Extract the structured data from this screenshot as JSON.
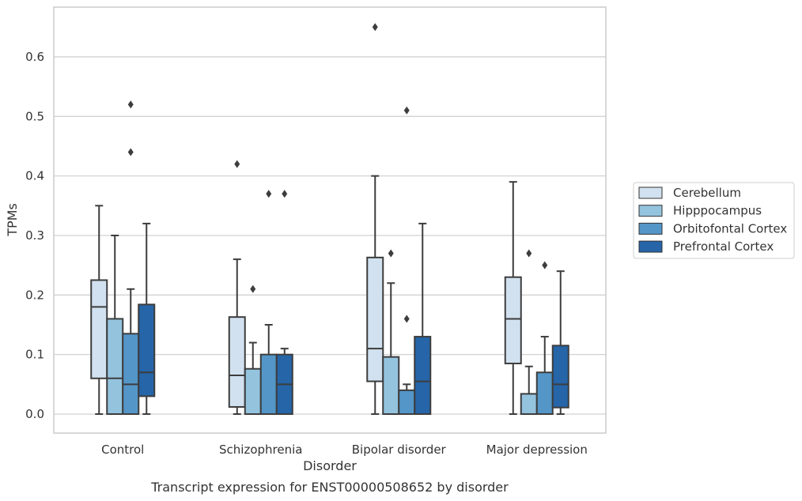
{
  "chart_data": {
    "type": "box",
    "title": "Transcript expression for ENST00000508652 by disorder",
    "xlabel": "Disorder",
    "ylabel": "TPMs",
    "ylim": [
      -0.03,
      0.685
    ],
    "yticks": [
      "0.0",
      "0.1",
      "0.2",
      "0.3",
      "0.4",
      "0.5",
      "0.6"
    ],
    "grid": true,
    "legend_position": "right",
    "categories": [
      "Control",
      "Schizophrenia",
      "Bipolar disorder",
      "Major depression"
    ],
    "series": [
      {
        "name": "Cerebellum",
        "color": "#d1e1ef",
        "boxes": [
          {
            "q1": 0.06,
            "median": 0.18,
            "q3": 0.225,
            "whislo": 0.0,
            "whishi": 0.35,
            "fliers": []
          },
          {
            "q1": 0.012,
            "median": 0.065,
            "q3": 0.163,
            "whislo": 0.0,
            "whishi": 0.26,
            "fliers": [
              0.42
            ]
          },
          {
            "q1": 0.055,
            "median": 0.11,
            "q3": 0.263,
            "whislo": 0.0,
            "whishi": 0.4,
            "fliers": [
              0.65
            ]
          },
          {
            "q1": 0.085,
            "median": 0.16,
            "q3": 0.23,
            "whislo": 0.0,
            "whishi": 0.39,
            "fliers": []
          }
        ]
      },
      {
        "name": "Hipppocampus",
        "color": "#94c3de",
        "boxes": [
          {
            "q1": 0.0,
            "median": 0.06,
            "q3": 0.16,
            "whislo": 0.0,
            "whishi": 0.3,
            "fliers": []
          },
          {
            "q1": 0.0,
            "median": 0.0,
            "q3": 0.076,
            "whislo": 0.0,
            "whishi": 0.12,
            "fliers": [
              0.21
            ]
          },
          {
            "q1": 0.0,
            "median": 0.0,
            "q3": 0.096,
            "whislo": 0.0,
            "whishi": 0.22,
            "fliers": [
              0.27
            ]
          },
          {
            "q1": 0.0,
            "median": 0.0,
            "q3": 0.034,
            "whislo": 0.0,
            "whishi": 0.08,
            "fliers": [
              0.27
            ]
          }
        ]
      },
      {
        "name": "Orbitofontal Cortex",
        "color": "#5496c8",
        "boxes": [
          {
            "q1": 0.0,
            "median": 0.05,
            "q3": 0.135,
            "whislo": 0.0,
            "whishi": 0.21,
            "fliers": [
              0.44,
              0.52
            ]
          },
          {
            "q1": 0.0,
            "median": 0.0,
            "q3": 0.1,
            "whislo": 0.0,
            "whishi": 0.15,
            "fliers": [
              0.37
            ]
          },
          {
            "q1": 0.0,
            "median": 0.0,
            "q3": 0.04,
            "whislo": 0.0,
            "whishi": 0.05,
            "fliers": [
              0.16,
              0.51
            ]
          },
          {
            "q1": 0.0,
            "median": 0.0,
            "q3": 0.07,
            "whislo": 0.0,
            "whishi": 0.13,
            "fliers": [
              0.25
            ]
          }
        ]
      },
      {
        "name": "Prefrontal Cortex",
        "color": "#2565a8",
        "boxes": [
          {
            "q1": 0.03,
            "median": 0.07,
            "q3": 0.184,
            "whislo": 0.0,
            "whishi": 0.32,
            "fliers": []
          },
          {
            "q1": 0.0,
            "median": 0.05,
            "q3": 0.1,
            "whislo": 0.0,
            "whishi": 0.11,
            "fliers": [
              0.37
            ]
          },
          {
            "q1": 0.0,
            "median": 0.055,
            "q3": 0.13,
            "whislo": 0.0,
            "whishi": 0.32,
            "fliers": []
          },
          {
            "q1": 0.011,
            "median": 0.05,
            "q3": 0.115,
            "whislo": 0.0,
            "whishi": 0.24,
            "fliers": []
          }
        ]
      }
    ]
  }
}
